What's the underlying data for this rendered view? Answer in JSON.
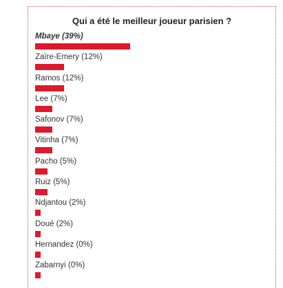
{
  "poll": {
    "title": "Qui a été le meilleur joueur parisien ?"
  },
  "chart_data": {
    "type": "bar",
    "orientation": "horizontal",
    "title": "Qui a été le meilleur joueur parisien ?",
    "bar_color": "#e0182b",
    "highlighted_option": "Mbaye",
    "options": [
      {
        "name": "Mbaye",
        "percent": 39,
        "label": "Mbaye (39%)"
      },
      {
        "name": "Zaïre-Emery",
        "percent": 12,
        "label": "Zaïre-Emery (12%)"
      },
      {
        "name": "Ramos",
        "percent": 12,
        "label": "Ramos (12%)"
      },
      {
        "name": "Lee",
        "percent": 7,
        "label": "Lee (7%)"
      },
      {
        "name": "Safonov",
        "percent": 7,
        "label": "Safonov (7%)"
      },
      {
        "name": "Vitinha",
        "percent": 7,
        "label": "Vitinha (7%)"
      },
      {
        "name": "Pacho",
        "percent": 5,
        "label": "Pacho (5%)"
      },
      {
        "name": "Ruiz",
        "percent": 5,
        "label": "Ruiz (5%)"
      },
      {
        "name": "Ndjantou",
        "percent": 2,
        "label": "Ndjantou (2%)"
      },
      {
        "name": "Doué",
        "percent": 2,
        "label": "Doué (2%)"
      },
      {
        "name": "Hernandez",
        "percent": 0,
        "label": "Hernandez (0%)"
      },
      {
        "name": "Zabarnyi",
        "percent": 0,
        "label": "Zabarnyi (0%)"
      }
    ]
  }
}
